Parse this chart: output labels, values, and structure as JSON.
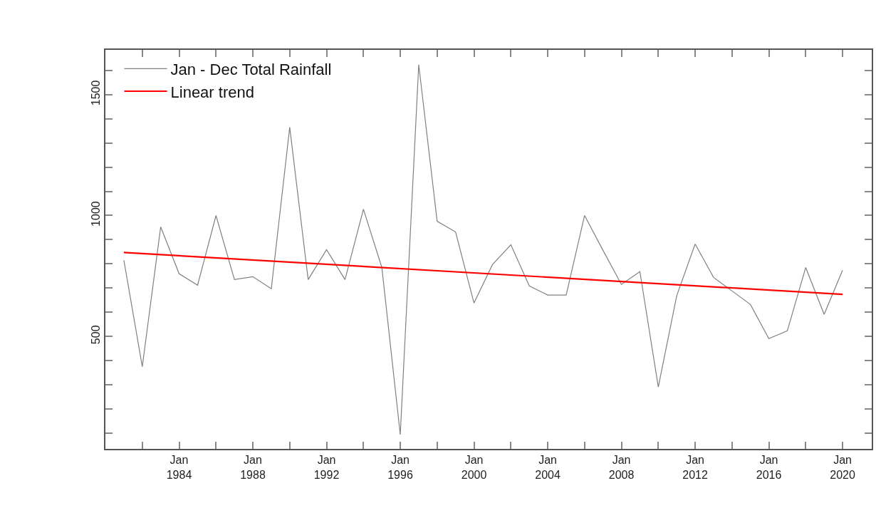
{
  "chart_data": {
    "type": "line",
    "x": [
      "1981",
      "1982",
      "1983",
      "1984",
      "1985",
      "1986",
      "1987",
      "1988",
      "1989",
      "1990",
      "1991",
      "1992",
      "1993",
      "1994",
      "1995",
      "1996",
      "1997",
      "1998",
      "1999",
      "2000",
      "2001",
      "2002",
      "2003",
      "2004",
      "2005",
      "2006",
      "2007",
      "2008",
      "2009",
      "2010",
      "2011",
      "2012",
      "2013",
      "2014",
      "2015",
      "2016",
      "2017",
      "2018",
      "2019",
      "2020"
    ],
    "series": [
      {
        "name": "Jan - Dec Total Rainfall",
        "color": "#808080",
        "values": [
          815,
          375,
          953,
          759,
          712,
          1000,
          735,
          747,
          697,
          1365,
          735,
          859,
          735,
          1026,
          785,
          94,
          1624,
          976,
          932,
          638,
          797,
          879,
          709,
          671,
          671,
          1000,
          856,
          715,
          768,
          291,
          668,
          882,
          744,
          688,
          632,
          491,
          523,
          785,
          591,
          774
        ]
      },
      {
        "name": "Linear trend",
        "color": "#ff0000",
        "type": "line",
        "x": [
          "1981",
          "2020"
        ],
        "values": [
          847,
          674
        ]
      }
    ],
    "xlim": [
      "1980-01",
      "2021-08"
    ],
    "xticks": [
      {
        "value": "1982-01",
        "label": null
      },
      {
        "value": "1984-01",
        "label": "Jan\n1984"
      },
      {
        "value": "1986-01",
        "label": null
      },
      {
        "value": "1988-01",
        "label": "Jan\n1988"
      },
      {
        "value": "1990-01",
        "label": null
      },
      {
        "value": "1992-01",
        "label": "Jan\n1992"
      },
      {
        "value": "1994-01",
        "label": null
      },
      {
        "value": "1996-01",
        "label": "Jan\n1996"
      },
      {
        "value": "1998-01",
        "label": null
      },
      {
        "value": "2000-01",
        "label": "Jan\n2000"
      },
      {
        "value": "2002-01",
        "label": null
      },
      {
        "value": "2004-01",
        "label": "Jan\n2004"
      },
      {
        "value": "2006-01",
        "label": null
      },
      {
        "value": "2008-01",
        "label": "Jan\n2008"
      },
      {
        "value": "2010-01",
        "label": null
      },
      {
        "value": "2012-01",
        "label": "Jan\n2012"
      },
      {
        "value": "2014-01",
        "label": null
      },
      {
        "value": "2016-01",
        "label": "Jan\n2016"
      },
      {
        "value": "2018-01",
        "label": null
      },
      {
        "value": "2020-01",
        "label": "Jan\n2020"
      }
    ],
    "ylim": [
      35,
      1685
    ],
    "yticks": [
      {
        "value": 100,
        "label": null
      },
      {
        "value": 200,
        "label": null
      },
      {
        "value": 300,
        "label": null
      },
      {
        "value": 400,
        "label": null
      },
      500,
      {
        "value": 600,
        "label": null
      },
      {
        "value": 700,
        "label": null
      },
      {
        "value": 800,
        "label": null
      },
      {
        "value": 900,
        "label": null
      },
      1000,
      {
        "value": 1100,
        "label": null
      },
      {
        "value": 1200,
        "label": null
      },
      {
        "value": 1300,
        "label": null
      },
      {
        "value": 1400,
        "label": null
      },
      1500,
      {
        "value": 1600,
        "label": null
      }
    ],
    "grid": false,
    "legend": "top left",
    "marker": "none",
    "line_style": "solid"
  }
}
